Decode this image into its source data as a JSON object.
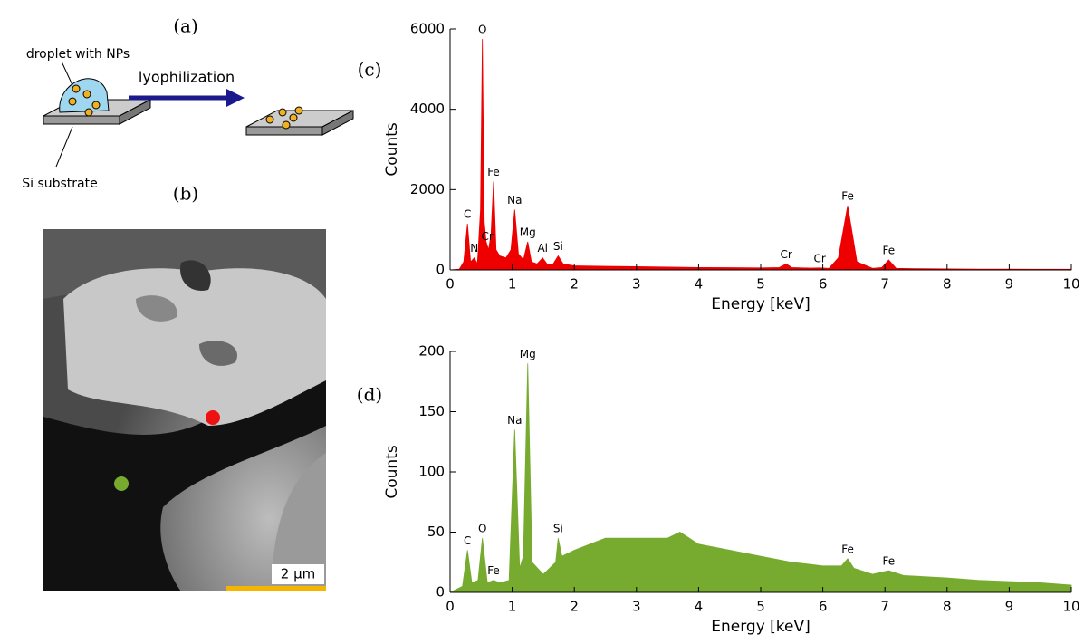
{
  "panels": {
    "a": "(a)",
    "b": "(b)",
    "c": "(c)",
    "d": "(d)"
  },
  "diagram": {
    "droplet_label": "droplet with NPs",
    "arrow_label": "lyophilization",
    "substrate_label": "Si substrate"
  },
  "image": {
    "scale_bar": "2 µm"
  },
  "chart_data": [
    {
      "type": "area",
      "xlabel": "Energy [keV]",
      "ylabel": "Counts",
      "color": "#ee0000",
      "xlim": [
        0,
        10
      ],
      "xticks": [
        0,
        1,
        2,
        3,
        4,
        5,
        6,
        7,
        8,
        9,
        10
      ],
      "ylim": [
        0,
        6000
      ],
      "yticks": [
        0,
        2000,
        4000,
        6000
      ],
      "x": [
        0,
        0.15,
        0.22,
        0.28,
        0.33,
        0.39,
        0.44,
        0.49,
        0.52,
        0.55,
        0.58,
        0.62,
        0.66,
        0.7,
        0.74,
        0.8,
        0.9,
        0.98,
        1.04,
        1.1,
        1.18,
        1.25,
        1.31,
        1.4,
        1.49,
        1.56,
        1.66,
        1.74,
        1.82,
        2.0,
        2.5,
        3.0,
        3.5,
        4.0,
        4.5,
        5.0,
        5.3,
        5.41,
        5.5,
        5.8,
        5.95,
        6.1,
        6.25,
        6.4,
        6.55,
        6.8,
        6.95,
        7.06,
        7.18,
        7.5,
        8,
        8.5,
        9,
        9.5,
        10
      ],
      "values": [
        0,
        20,
        200,
        1150,
        200,
        300,
        150,
        1500,
        5750,
        1200,
        700,
        500,
        900,
        2200,
        500,
        350,
        300,
        500,
        1500,
        400,
        250,
        700,
        200,
        150,
        300,
        150,
        150,
        350,
        150,
        100,
        90,
        80,
        70,
        60,
        55,
        50,
        60,
        150,
        60,
        45,
        50,
        40,
        300,
        1600,
        200,
        40,
        60,
        250,
        40,
        30,
        25,
        20,
        20,
        15,
        15
      ],
      "annotations": [
        {
          "text": "C",
          "x": 0.28
        },
        {
          "text": "N",
          "x": 0.39
        },
        {
          "text": "O",
          "x": 0.52
        },
        {
          "text": "Cr",
          "x": 0.6
        },
        {
          "text": "Fe",
          "x": 0.7
        },
        {
          "text": "Na",
          "x": 1.04
        },
        {
          "text": "Mg",
          "x": 1.25
        },
        {
          "text": "Al",
          "x": 1.49
        },
        {
          "text": "Si",
          "x": 1.74
        },
        {
          "text": "Cr",
          "x": 5.41
        },
        {
          "text": "Cr",
          "x": 5.95
        },
        {
          "text": "Fe",
          "x": 6.4
        },
        {
          "text": "Fe",
          "x": 7.06
        }
      ]
    },
    {
      "type": "area",
      "xlabel": "Energy [keV]",
      "ylabel": "Counts",
      "color": "#77ab2f",
      "xlim": [
        0,
        10
      ],
      "xticks": [
        0,
        1,
        2,
        3,
        4,
        5,
        6,
        7,
        8,
        9,
        10
      ],
      "ylim": [
        0,
        200
      ],
      "yticks": [
        0,
        50,
        100,
        150,
        200
      ],
      "x": [
        0,
        0.2,
        0.28,
        0.35,
        0.45,
        0.52,
        0.6,
        0.7,
        0.8,
        0.95,
        1.04,
        1.12,
        1.18,
        1.25,
        1.32,
        1.5,
        1.7,
        1.74,
        1.8,
        2.0,
        2.5,
        3.0,
        3.5,
        3.7,
        4.0,
        4.5,
        5.0,
        5.5,
        6.0,
        6.3,
        6.4,
        6.5,
        6.8,
        7.06,
        7.3,
        8,
        8.5,
        9,
        9.5,
        10
      ],
      "values": [
        0,
        5,
        35,
        8,
        10,
        45,
        8,
        10,
        8,
        10,
        135,
        20,
        30,
        190,
        25,
        15,
        25,
        45,
        30,
        35,
        45,
        45,
        45,
        50,
        40,
        35,
        30,
        25,
        22,
        22,
        28,
        20,
        15,
        18,
        14,
        12,
        10,
        9,
        8,
        6
      ],
      "annotations": [
        {
          "text": "C",
          "x": 0.28
        },
        {
          "text": "O",
          "x": 0.52
        },
        {
          "text": "Fe",
          "x": 0.7
        },
        {
          "text": "Na",
          "x": 1.04
        },
        {
          "text": "Mg",
          "x": 1.25
        },
        {
          "text": "Si",
          "x": 1.74
        },
        {
          "text": "Fe",
          "x": 6.4
        },
        {
          "text": "Fe",
          "x": 7.06
        }
      ]
    }
  ]
}
